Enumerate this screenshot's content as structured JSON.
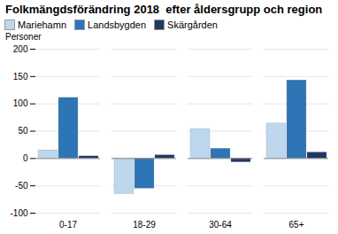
{
  "chart_data": {
    "type": "bar",
    "title": "Folkmängdsförändring 2018  efter åldersgrupp och region",
    "ylabel": "Personer",
    "categories": [
      "0-17",
      "18-29",
      "30-64",
      "65+"
    ],
    "series": [
      {
        "name": "Mariehamn",
        "color": "#bdd7ee",
        "values": [
          15,
          -65,
          54,
          64
        ]
      },
      {
        "name": "Landsbygden",
        "color": "#2e75b6",
        "values": [
          111,
          -55,
          18,
          143
        ]
      },
      {
        "name": "Skärgården",
        "color": "#1f3864",
        "values": [
          4,
          6,
          -7,
          11
        ]
      }
    ],
    "ylim": [
      -100,
      200
    ],
    "yticks": [
      -100,
      -50,
      0,
      50,
      100,
      150,
      200
    ],
    "grid": true,
    "legend": "upper left"
  }
}
